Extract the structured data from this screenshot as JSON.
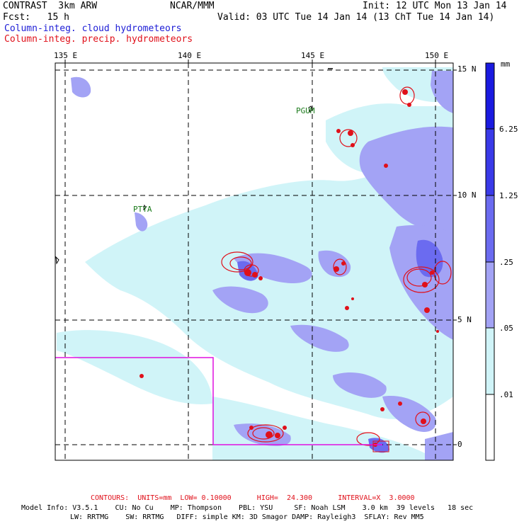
{
  "header": {
    "left_line1": "CONTRAST  3km ARW",
    "center_line1": "NCAR/MMM",
    "right_line1": "Init: 12 UTC Mon 13 Jan 14",
    "left_line2": "Fcst:   15 h",
    "right_line2": "Valid: 03 UTC Tue 14 Jan 14 (13 ChT Tue 14 Jan 14)",
    "field1": "Column-integ. cloud hydrometeors",
    "field2": "Column-integ. precip. hydrometeors",
    "field1_color": "#1c1cd6",
    "field2_color": "#e0101a"
  },
  "axes": {
    "lon_labels": [
      "135 E",
      "140 E",
      "145 E",
      "150 E"
    ],
    "lat_labels": [
      "15 N",
      "10 N",
      "5 N",
      "0"
    ]
  },
  "places": {
    "guam": "PGUM",
    "palau": "PTYA"
  },
  "colorbar": {
    "unit": "mm",
    "labels": [
      "6.25",
      "1.25",
      ".25",
      ".05",
      ".01"
    ],
    "colors": [
      "#1a1ae0",
      "#3a3ae8",
      "#6b6bf0",
      "#a3a3f5",
      "#d0f4f8",
      "#ffffff"
    ]
  },
  "footer": {
    "contours": "CONTOURS:  UNITS=mm  LOW= 0.10000      HIGH=  24.300      INTERVAL=X  3.0000",
    "model_line1": "Model Info: V3.5.1    CU: No Cu    MP: Thompson    PBL: YSU     SF: Noah LSM    3.0 km  39 levels   18 sec",
    "model_line2": "LW: RRTMG    SW: RRTMG   DIFF: simple KM: 3D Smagor DAMP: Rayleigh3  SFLAY: Rev MM5"
  }
}
